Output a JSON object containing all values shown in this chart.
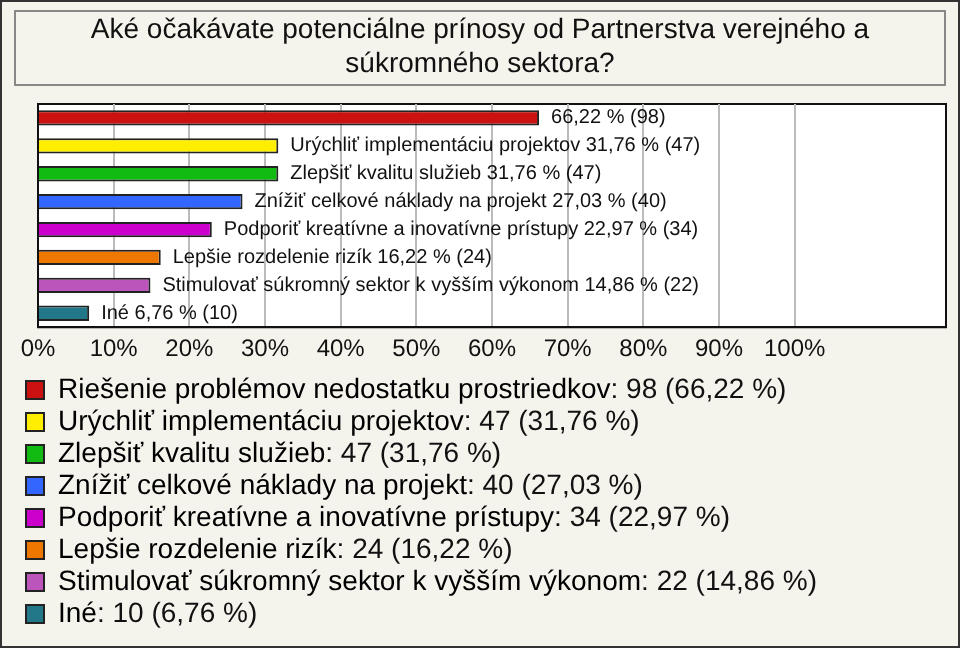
{
  "chart_data": {
    "type": "bar",
    "orientation": "horizontal",
    "title": "Aké očakávate potenciálne prínosy od Partnerstva verejného a súkromného sektora?",
    "categories": [
      null,
      null,
      null,
      null,
      null,
      null,
      null,
      null
    ],
    "series": [
      {
        "name": "Riešenie problémov nedostatku prostriedkov",
        "color": "#cc1111",
        "values": [
          66.22,
          null,
          null,
          null,
          null,
          null,
          null,
          null
        ],
        "value_labels": [
          "66,22 % (98)",
          null,
          null,
          null,
          null,
          null,
          null,
          null
        ]
      },
      {
        "name": "Urýchliť implementáciu projektov",
        "color": "#ffee00",
        "values": [
          null,
          31.76,
          null,
          null,
          null,
          null,
          null,
          null
        ],
        "value_labels": [
          null,
          "Urýchliť implementáciu projektov 31,76 % (47)",
          null,
          null,
          null,
          null,
          null,
          null
        ]
      },
      {
        "name": "Zlepšiť kvalitu služieb",
        "color": "#11bb11",
        "values": [
          null,
          null,
          31.76,
          null,
          null,
          null,
          null,
          null
        ],
        "value_labels": [
          null,
          null,
          "Zlepšiť kvalitu služieb 31,76 % (47)",
          null,
          null,
          null,
          null,
          null
        ]
      },
      {
        "name": "Znížiť celkové náklady na projekt",
        "color": "#3366ff",
        "values": [
          null,
          null,
          null,
          27.03,
          null,
          null,
          null,
          null
        ],
        "value_labels": [
          null,
          null,
          null,
          "Znížiť celkové náklady na projekt 27,03 % (40)",
          null,
          null,
          null,
          null
        ]
      },
      {
        "name": "Podporiť kreatívne a inovatívne prístupy",
        "color": "#cc00cc",
        "values": [
          null,
          null,
          null,
          null,
          22.97,
          null,
          null,
          null
        ],
        "value_labels": [
          null,
          null,
          null,
          null,
          "Podporiť kreatívne a inovatívne prístupy 22,97 % (34)",
          null,
          null,
          null
        ]
      },
      {
        "name": "Lepšie rozdelenie rizík",
        "color": "#ee7700",
        "values": [
          null,
          null,
          null,
          null,
          null,
          16.22,
          null,
          null
        ],
        "value_labels": [
          null,
          null,
          null,
          null,
          null,
          "Lepšie rozdelenie rizík 16,22 % (24)",
          null,
          null
        ]
      },
      {
        "name": "Stimulovať súkromný sektor k vyšším výkonom",
        "color": "#bb55bb",
        "values": [
          null,
          null,
          null,
          null,
          null,
          null,
          14.86,
          null
        ],
        "value_labels": [
          null,
          null,
          null,
          null,
          null,
          null,
          "Stimulovať súkromný sektor k vyšším výkonom 14,86 % (22)",
          null
        ]
      },
      {
        "name": "Iné",
        "color": "#227788",
        "values": [
          null,
          null,
          null,
          null,
          null,
          null,
          null,
          6.76
        ],
        "value_labels": [
          null,
          null,
          null,
          null,
          null,
          null,
          null,
          "Iné 6,76 % (10)"
        ]
      }
    ],
    "xlim": [
      0,
      120
    ],
    "xticks": [
      {
        "value": 0,
        "label": "0%"
      },
      {
        "value": 10,
        "label": "10%"
      },
      {
        "value": 20,
        "label": "20%"
      },
      {
        "value": 30,
        "label": "30%"
      },
      {
        "value": 40,
        "label": "40%"
      },
      {
        "value": 50,
        "label": "50%"
      },
      {
        "value": 60,
        "label": "60%"
      },
      {
        "value": 70,
        "label": "70%"
      },
      {
        "value": 80,
        "label": "80%"
      },
      {
        "value": 90,
        "label": "90%"
      },
      {
        "value": 100,
        "label": "100%"
      }
    ],
    "grid": "x",
    "tick_labels": "x",
    "legend": "bottom",
    "annotations": [
      ": 98 (66,22 %)",
      ": 47 (31,76 %)",
      ": 47 (31,76 %)",
      ": 40 (27,03 %)",
      ": 34 (22,97 %)",
      ": 24 (16,22 %)",
      ": 22 (14,86 %)",
      ": 10 (6,76 %)"
    ]
  }
}
